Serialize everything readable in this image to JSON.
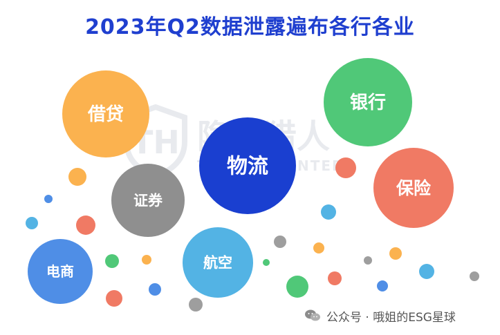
{
  "title": "2023年Q2数据泄露遍布各行各业",
  "watermark": {
    "name": "隐私猎人",
    "subtitle": "THREAT HUNTER"
  },
  "footer": {
    "text": "公众号 · 哦姐的ESG星球",
    "icon": "wechat-icon"
  },
  "chart_data": {
    "type": "bubble",
    "title": "2023年Q2数据泄露遍布各行各业",
    "categories": [
      "物流",
      "借贷",
      "银行",
      "保险",
      "证券",
      "航空",
      "电商"
    ],
    "colors": {
      "物流": "#1a3fd0",
      "借贷": "#fbb24f",
      "银行": "#50c878",
      "保险": "#f07a64",
      "证券": "#8f8f8f",
      "航空": "#53b3e4",
      "电商": "#4f8ee6"
    }
  }
}
